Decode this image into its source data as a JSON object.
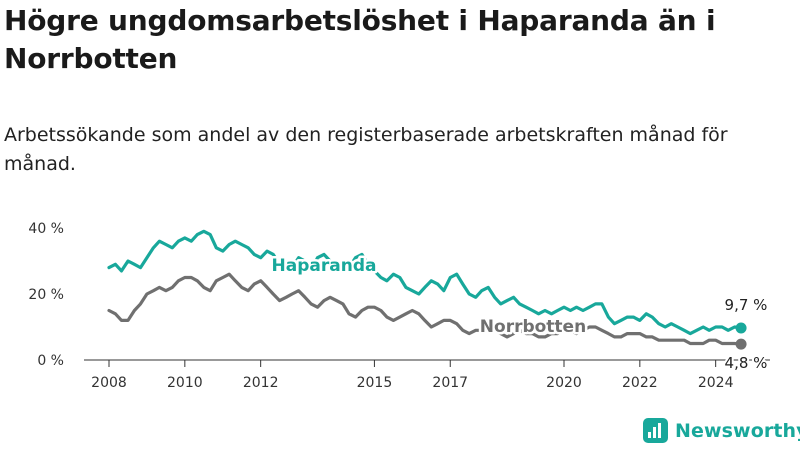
{
  "title": "Högre ungdomsarbetslöshet i Haparanda än i Norrbotten",
  "subtitle": "Arbetssökande som andel av den registerbaserade arbetskraften månad för månad.",
  "brand": {
    "name": "Newsworthy",
    "icon": "newsworthy-logo-icon"
  },
  "colors": {
    "haparanda": "#18a89b",
    "norrbotten": "#707070",
    "axis": "#333333"
  },
  "chart_data": {
    "type": "line",
    "xlabel": "",
    "ylabel": "",
    "ylim": [
      0,
      40
    ],
    "xlim": [
      2008,
      2024.8
    ],
    "y_ticks": [
      {
        "value": 0,
        "label": "0 %"
      },
      {
        "value": 20,
        "label": "20 %"
      },
      {
        "value": 40,
        "label": "40 %"
      }
    ],
    "x_ticks": [
      {
        "value": 2008,
        "label": "2008"
      },
      {
        "value": 2010,
        "label": "2010"
      },
      {
        "value": 2012,
        "label": "2012"
      },
      {
        "value": 2015,
        "label": "2015"
      },
      {
        "value": 2017,
        "label": "2017"
      },
      {
        "value": 2020,
        "label": "2020"
      },
      {
        "value": 2022,
        "label": "2022"
      },
      {
        "value": 2024,
        "label": "2024"
      }
    ],
    "grid": false,
    "legend": "inline labels",
    "series": [
      {
        "name": "Haparanda",
        "color": "#18a89b",
        "end_label": "9,7 %",
        "x": [
          2008,
          2008.17,
          2008.33,
          2008.5,
          2008.67,
          2008.83,
          2009,
          2009.17,
          2009.33,
          2009.5,
          2009.67,
          2009.83,
          2010,
          2010.17,
          2010.33,
          2010.5,
          2010.67,
          2010.83,
          2011,
          2011.17,
          2011.33,
          2011.5,
          2011.67,
          2011.83,
          2012,
          2012.17,
          2012.33,
          2012.5,
          2012.67,
          2012.83,
          2013,
          2013.17,
          2013.33,
          2013.5,
          2013.67,
          2013.83,
          2014,
          2014.17,
          2014.33,
          2014.5,
          2014.67,
          2014.83,
          2015,
          2015.17,
          2015.33,
          2015.5,
          2015.67,
          2015.83,
          2016,
          2016.17,
          2016.33,
          2016.5,
          2016.67,
          2016.83,
          2017,
          2017.17,
          2017.33,
          2017.5,
          2017.67,
          2017.83,
          2018,
          2018.17,
          2018.33,
          2018.5,
          2018.67,
          2018.83,
          2019,
          2019.17,
          2019.33,
          2019.5,
          2019.67,
          2019.83,
          2020,
          2020.17,
          2020.33,
          2020.5,
          2020.67,
          2020.83,
          2021,
          2021.17,
          2021.33,
          2021.5,
          2021.67,
          2021.83,
          2022,
          2022.17,
          2022.33,
          2022.5,
          2022.67,
          2022.83,
          2023,
          2023.17,
          2023.33,
          2023.5,
          2023.67,
          2023.83,
          2024,
          2024.17,
          2024.33,
          2024.5,
          2024.67
        ],
        "values": [
          28,
          29,
          27,
          30,
          29,
          28,
          31,
          34,
          36,
          35,
          34,
          36,
          37,
          36,
          38,
          39,
          38,
          34,
          33,
          35,
          36,
          35,
          34,
          32,
          31,
          33,
          32,
          29,
          27,
          28,
          31,
          30,
          27,
          31,
          32,
          30,
          29,
          30,
          28,
          31,
          32,
          29,
          27,
          25,
          24,
          26,
          25,
          22,
          21,
          20,
          22,
          24,
          23,
          21,
          25,
          26,
          23,
          20,
          19,
          21,
          22,
          19,
          17,
          18,
          19,
          17,
          16,
          15,
          14,
          15,
          14,
          15,
          16,
          15,
          16,
          15,
          16,
          17,
          17,
          13,
          11,
          12,
          13,
          13,
          12,
          14,
          13,
          11,
          10,
          11,
          10,
          9,
          8,
          9,
          10,
          9,
          10,
          10,
          9,
          10,
          9.7
        ]
      },
      {
        "name": "Norrbotten",
        "color": "#707070",
        "end_label": "4,8 %",
        "x": [
          2008,
          2008.17,
          2008.33,
          2008.5,
          2008.67,
          2008.83,
          2009,
          2009.17,
          2009.33,
          2009.5,
          2009.67,
          2009.83,
          2010,
          2010.17,
          2010.33,
          2010.5,
          2010.67,
          2010.83,
          2011,
          2011.17,
          2011.33,
          2011.5,
          2011.67,
          2011.83,
          2012,
          2012.17,
          2012.33,
          2012.5,
          2012.67,
          2012.83,
          2013,
          2013.17,
          2013.33,
          2013.5,
          2013.67,
          2013.83,
          2014,
          2014.17,
          2014.33,
          2014.5,
          2014.67,
          2014.83,
          2015,
          2015.17,
          2015.33,
          2015.5,
          2015.67,
          2015.83,
          2016,
          2016.17,
          2016.33,
          2016.5,
          2016.67,
          2016.83,
          2017,
          2017.17,
          2017.33,
          2017.5,
          2017.67,
          2017.83,
          2018,
          2018.17,
          2018.33,
          2018.5,
          2018.67,
          2018.83,
          2019,
          2019.17,
          2019.33,
          2019.5,
          2019.67,
          2019.83,
          2020,
          2020.17,
          2020.33,
          2020.5,
          2020.67,
          2020.83,
          2021,
          2021.17,
          2021.33,
          2021.5,
          2021.67,
          2021.83,
          2022,
          2022.17,
          2022.33,
          2022.5,
          2022.67,
          2022.83,
          2023,
          2023.17,
          2023.33,
          2023.5,
          2023.67,
          2023.83,
          2024,
          2024.17,
          2024.33,
          2024.5,
          2024.67
        ],
        "values": [
          15,
          14,
          12,
          12,
          15,
          17,
          20,
          21,
          22,
          21,
          22,
          24,
          25,
          25,
          24,
          22,
          21,
          24,
          25,
          26,
          24,
          22,
          21,
          23,
          24,
          22,
          20,
          18,
          19,
          20,
          21,
          19,
          17,
          16,
          18,
          19,
          18,
          17,
          14,
          13,
          15,
          16,
          16,
          15,
          13,
          12,
          13,
          14,
          15,
          14,
          12,
          10,
          11,
          12,
          12,
          11,
          9,
          8,
          9,
          9,
          10,
          9,
          8,
          7,
          8,
          9,
          8,
          8,
          7,
          7,
          8,
          8,
          9,
          9,
          8,
          9,
          10,
          10,
          9,
          8,
          7,
          7,
          8,
          8,
          8,
          7,
          7,
          6,
          6,
          6,
          6,
          6,
          5,
          5,
          5,
          6,
          6,
          5,
          5,
          5,
          4.8
        ]
      }
    ]
  }
}
